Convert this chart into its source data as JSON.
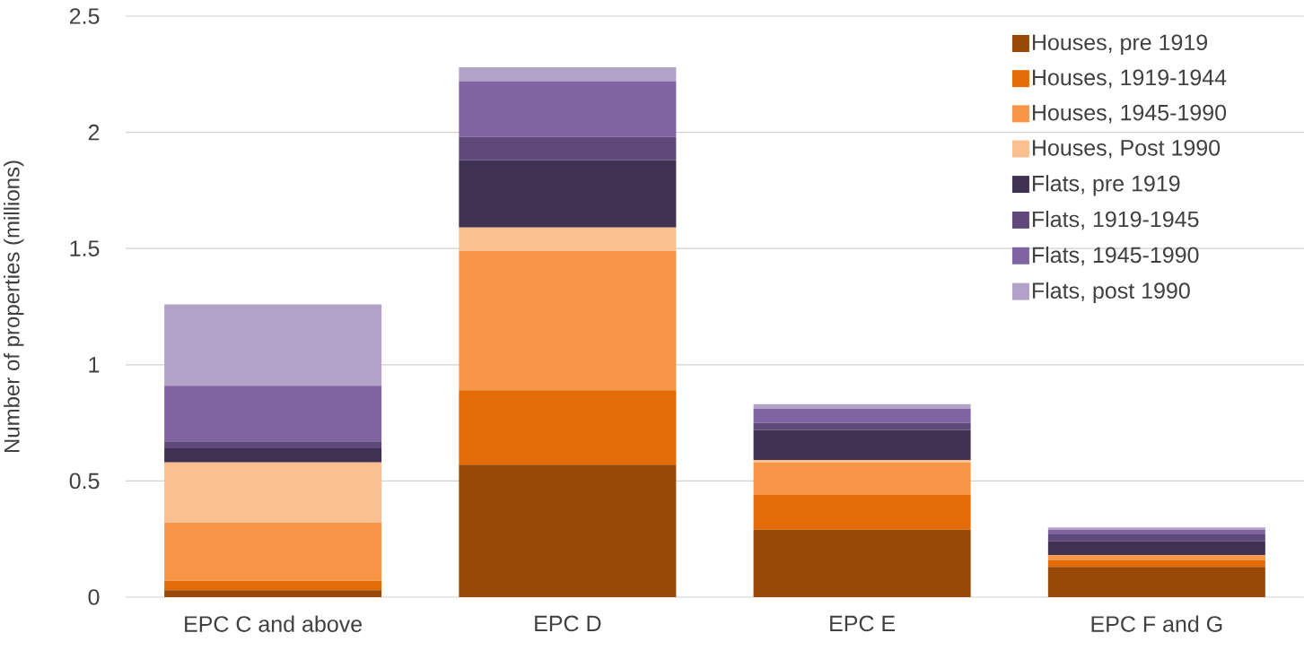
{
  "chart_data": {
    "type": "bar",
    "stacked": true,
    "ylabel": "Number of properties (millions)",
    "categories": [
      "EPC C and above",
      "EPC D",
      "EPC E",
      "EPC F and G"
    ],
    "series": [
      {
        "name": "Houses, pre 1919",
        "color": "#984807",
        "values": [
          0.03,
          0.57,
          0.29,
          0.13
        ]
      },
      {
        "name": "Houses, 1919-1944",
        "color": "#e36c09",
        "values": [
          0.04,
          0.32,
          0.15,
          0.03
        ]
      },
      {
        "name": "Houses, 1945-1990",
        "color": "#f79646",
        "values": [
          0.25,
          0.6,
          0.14,
          0.02
        ]
      },
      {
        "name": "Houses, Post 1990",
        "color": "#fac090",
        "values": [
          0.26,
          0.1,
          0.01,
          0.0
        ]
      },
      {
        "name": "Flats, pre 1919",
        "color": "#3f3151",
        "values": [
          0.06,
          0.29,
          0.13,
          0.06
        ]
      },
      {
        "name": "Flats, 1919-1945",
        "color": "#5f497a",
        "values": [
          0.03,
          0.1,
          0.03,
          0.03
        ]
      },
      {
        "name": "Flats, 1945-1990",
        "color": "#8064a2",
        "values": [
          0.24,
          0.24,
          0.06,
          0.02
        ]
      },
      {
        "name": "Flats, post 1990",
        "color": "#b2a2c7",
        "values": [
          0.35,
          0.06,
          0.02,
          0.01
        ]
      }
    ],
    "ylim": [
      0,
      2.5
    ],
    "yticks": [
      0,
      0.5,
      1,
      1.5,
      2,
      2.5
    ],
    "grid": "y",
    "legend": "top right"
  }
}
